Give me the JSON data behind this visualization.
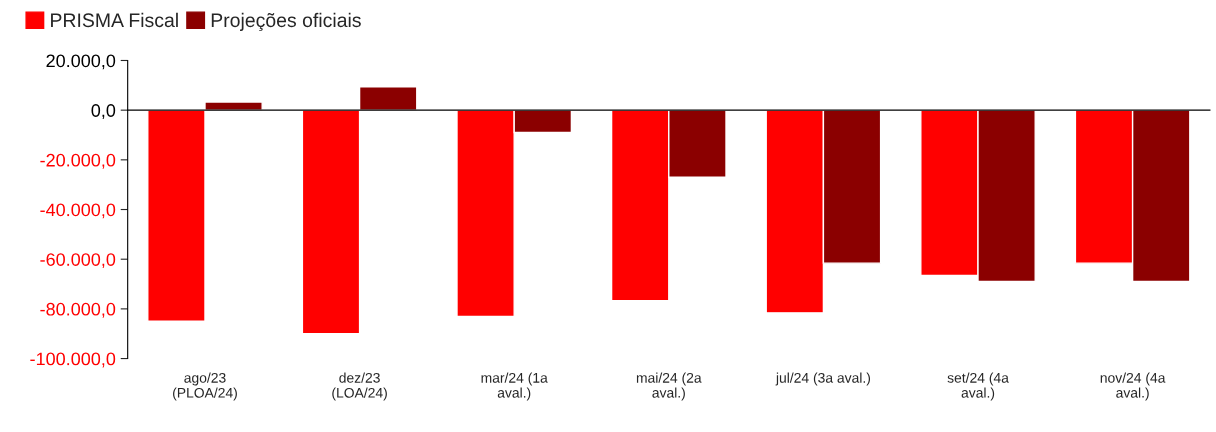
{
  "chart_data": {
    "type": "bar",
    "categories": [
      "ago/23\n(PLOA/24)",
      "dez/23\n(LOA/24)",
      "mar/24 (1a\naval.)",
      "mai/24 (2a\naval.)",
      "jul/24 (3a aval.)",
      "set/24 (4a\naval.)",
      "nov/24 (4a\naval.)"
    ],
    "series": [
      {
        "name": "PRISMA Fiscal",
        "color": "#ff0000",
        "values": [
          -85000,
          -90000,
          -83000,
          -76700,
          -81600,
          -66500,
          -61600
        ]
      },
      {
        "name": "Projeções oficiais",
        "color": "#8b0000",
        "values": [
          3300,
          9400,
          -9000,
          -27000,
          -61600,
          -69000,
          -69000
        ]
      }
    ],
    "ylim": [
      -100000,
      20000
    ],
    "yticks": [
      {
        "value": -100000,
        "label": "-100.000,0"
      },
      {
        "value": -80000,
        "label": "-80.000,0"
      },
      {
        "value": -60000,
        "label": "-60.000,0"
      },
      {
        "value": -40000,
        "label": "-40.000,0"
      },
      {
        "value": -20000,
        "label": "-20.000,0"
      },
      {
        "value": 0,
        "label": "0,0"
      },
      {
        "value": 20000,
        "label": "20.000,0"
      }
    ],
    "legend": "top left"
  }
}
